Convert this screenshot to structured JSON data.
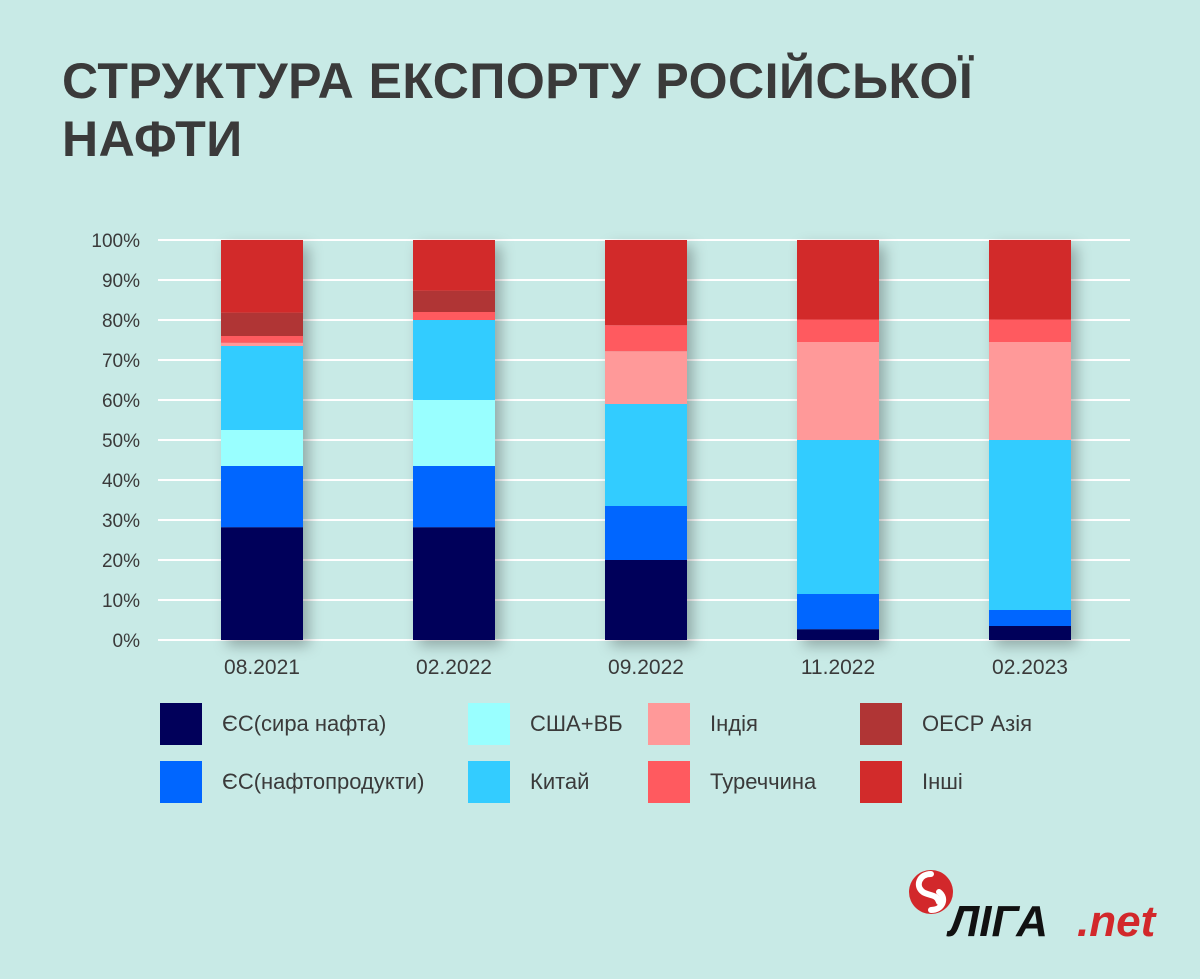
{
  "title": "СТРУКТУРА ЕКСПОРТУ РОСІЙСЬКОЇ НАФТИ",
  "logo": {
    "main": "ЛІГА",
    "suffix": ".net"
  },
  "chart_data": {
    "type": "bar",
    "stacked": true,
    "title": "СТРУКТУРА ЕКСПОРТУ РОСІЙСЬКОЇ НАФТИ",
    "xlabel": "",
    "ylabel": "",
    "ylim": [
      0,
      100
    ],
    "yticks": [
      "0%",
      "10%",
      "20%",
      "30%",
      "40%",
      "50%",
      "60%",
      "70%",
      "80%",
      "90%",
      "100%"
    ],
    "grid": true,
    "legend_position": "bottom",
    "categories": [
      "08.2021",
      "02.2022",
      "09.2022",
      "11.2022",
      "02.2023"
    ],
    "series": [
      {
        "name": "ЄС(сира нафта)",
        "color": "#01005a",
        "values": [
          28.2,
          28.2,
          20.0,
          2.7,
          3.5
        ]
      },
      {
        "name": "ЄС(нафтопродукти)",
        "color": "#0066ff",
        "values": [
          15.3,
          15.3,
          13.5,
          8.8,
          4.0
        ]
      },
      {
        "name": "США+ВБ",
        "color": "#99ffff",
        "values": [
          9.0,
          16.5,
          0,
          0,
          0
        ]
      },
      {
        "name": "Китай",
        "color": "#33ccff",
        "values": [
          21.0,
          20.0,
          25.5,
          38.5,
          42.5
        ]
      },
      {
        "name": "Індія",
        "color": "#ff9999",
        "values": [
          0.8,
          0,
          13.2,
          24.5,
          24.5
        ]
      },
      {
        "name": "Туреччина",
        "color": "#ff5a5f",
        "values": [
          1.7,
          2.0,
          6.5,
          5.6,
          5.6
        ]
      },
      {
        "name": "ОЕСР Азія",
        "color": "#b03535",
        "values": [
          5.8,
          5.3,
          0,
          0,
          0
        ]
      },
      {
        "name": "Інші",
        "color": "#d22b2b",
        "values": [
          18.2,
          12.7,
          21.3,
          19.9,
          19.9
        ]
      }
    ]
  },
  "legend": [
    {
      "label": "ЄС(сира нафта)",
      "color": "#01005a"
    },
    {
      "label": "США+ВБ",
      "color": "#99ffff"
    },
    {
      "label": "Індія",
      "color": "#ff9999"
    },
    {
      "label": "ОЕСР Азія",
      "color": "#b03535"
    },
    {
      "label": "ЄС(нафтопродукти)",
      "color": "#0066ff"
    },
    {
      "label": "Китай",
      "color": "#33ccff"
    },
    {
      "label": "Туреччина",
      "color": "#ff5a5f"
    },
    {
      "label": "Інші",
      "color": "#d22b2b"
    }
  ]
}
